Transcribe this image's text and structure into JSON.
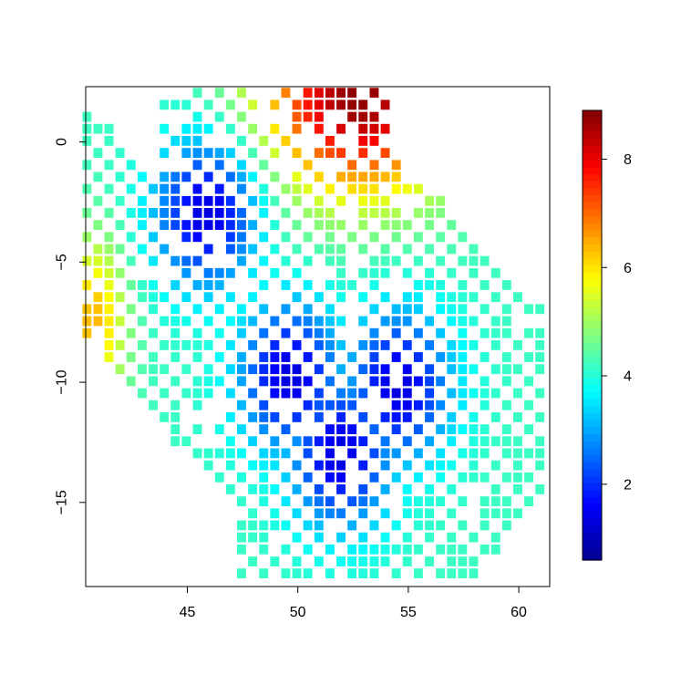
{
  "chart_data": {
    "type": "heatmap",
    "title": "",
    "xlabel": "",
    "ylabel": "",
    "xlim": [
      40.4,
      61.4
    ],
    "ylim": [
      -18.5,
      2.3
    ],
    "x_ticks": [
      45,
      50,
      55,
      60
    ],
    "x_tick_labels": [
      "45",
      "50",
      "55",
      "60"
    ],
    "y_ticks": [
      0,
      -5,
      -10,
      -15
    ],
    "y_tick_labels": [
      "0",
      "-5",
      "-10",
      "-15"
    ],
    "colorbar": {
      "range": [
        0.6,
        8.9
      ],
      "ticks": [
        2,
        4,
        6,
        8
      ],
      "tick_labels": [
        "2",
        "4",
        "6",
        "8"
      ],
      "palette": "jet",
      "colors": [
        "#00008F",
        "#0000FF",
        "#0080FF",
        "#00FFFF",
        "#80FF80",
        "#FFFF00",
        "#FF8000",
        "#FF0000",
        "#800000"
      ]
    },
    "grid": {
      "x_start": 40.5,
      "y_start": 2.0,
      "step": 0.5,
      "columns": 42,
      "rows": 42
    },
    "field": {
      "description_of_generation": "",
      "low_centers": [
        {
          "x": 45.9,
          "y": -3.0,
          "value": 0.7
        },
        {
          "x": 49.7,
          "y": -9.8,
          "value": 0.7
        },
        {
          "x": 52.0,
          "y": -13.0,
          "value": 0.8
        },
        {
          "x": 54.6,
          "y": -10.2,
          "value": 1.0
        }
      ],
      "high_center": {
        "x": 52.8,
        "y": 1.8,
        "value": 8.8
      }
    },
    "legend": "right"
  }
}
